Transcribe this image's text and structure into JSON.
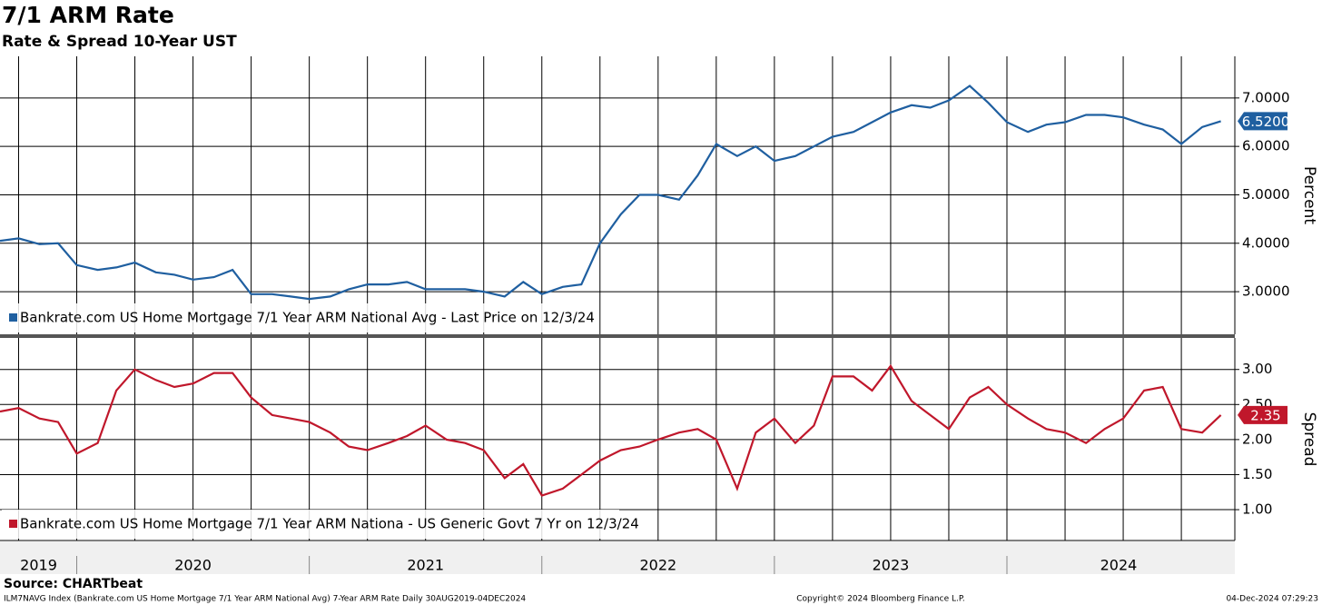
{
  "title": "7/1 ARM Rate",
  "subtitle": "Rate & Spread 10-Year UST",
  "source": "Source: CHARTbeat",
  "footer_left": "ILM7NAVG Index (Bankrate.com US Home Mortgage 7/1 Year ARM National Avg) 7-Year ARM Rate  Daily 30AUG2019-04DEC2024",
  "footer_center": "Copyright© 2024 Bloomberg Finance L.P.",
  "footer_right": "04-Dec-2024 07:29:23",
  "x_axis": {
    "xlim": [
      2019.67,
      2024.98
    ],
    "xticks": [
      {
        "value": 2019.836,
        "label": "2019"
      },
      {
        "value": 2020.5,
        "label": "2020"
      },
      {
        "value": 2021.5,
        "label": "2021"
      },
      {
        "value": 2022.5,
        "label": "2022"
      },
      {
        "value": 2023.5,
        "label": "2023"
      },
      {
        "value": 2024.48,
        "label": "2024"
      }
    ],
    "separators": [
      2020,
      2021,
      2022,
      2023,
      2024
    ],
    "xgrid": [
      2019.75,
      2020,
      2020.25,
      2020.5,
      2020.75,
      2021,
      2021.25,
      2021.5,
      2021.75,
      2022,
      2022.25,
      2022.5,
      2022.75,
      2023,
      2023.25,
      2023.5,
      2023.75,
      2024,
      2024.25,
      2024.5,
      2024.75
    ]
  },
  "chart_data": [
    {
      "type": "line",
      "y_label": "Percent",
      "ylim": [
        2.12,
        7.86
      ],
      "yticks": [
        {
          "value": 3,
          "label": "3.0000"
        },
        {
          "value": 4,
          "label": "4.0000"
        },
        {
          "value": 5,
          "label": "5.0000"
        },
        {
          "value": 6,
          "label": "6.0000"
        },
        {
          "value": 7,
          "label": "7.0000"
        }
      ],
      "last_label": "6.5200",
      "x": [
        2019.67,
        2019.75,
        2019.84,
        2019.92,
        2020.0,
        2020.09,
        2020.17,
        2020.25,
        2020.34,
        2020.42,
        2020.5,
        2020.59,
        2020.67,
        2020.75,
        2020.84,
        2020.92,
        2021.0,
        2021.09,
        2021.17,
        2021.25,
        2021.34,
        2021.42,
        2021.5,
        2021.59,
        2021.67,
        2021.75,
        2021.84,
        2021.92,
        2022.0,
        2022.09,
        2022.17,
        2022.25,
        2022.34,
        2022.42,
        2022.5,
        2022.59,
        2022.67,
        2022.75,
        2022.84,
        2022.92,
        2023.0,
        2023.09,
        2023.17,
        2023.25,
        2023.34,
        2023.42,
        2023.5,
        2023.59,
        2023.67,
        2023.75,
        2023.84,
        2023.92,
        2024.0,
        2024.09,
        2024.17,
        2024.25,
        2024.34,
        2024.42,
        2024.5,
        2024.59,
        2024.67,
        2024.75,
        2024.84,
        2024.92
      ],
      "series": [
        {
          "name": "Bankrate.com US Home Mortgage 7/1 Year ARM National Avg - Last Price on 12/3/24",
          "color": "#1f5fa0",
          "values": [
            4.05,
            4.1,
            3.98,
            4.0,
            3.55,
            3.45,
            3.5,
            3.6,
            3.4,
            3.35,
            3.25,
            3.3,
            3.45,
            2.95,
            2.95,
            2.9,
            2.85,
            2.9,
            3.05,
            3.15,
            3.15,
            3.2,
            3.05,
            3.05,
            3.05,
            3.0,
            2.9,
            3.2,
            2.95,
            3.1,
            3.15,
            4.0,
            4.6,
            5.0,
            5.0,
            4.9,
            5.4,
            6.05,
            5.8,
            6.0,
            5.7,
            5.8,
            6.0,
            6.2,
            6.3,
            6.5,
            6.7,
            6.85,
            6.8,
            6.95,
            7.25,
            6.9,
            6.5,
            6.3,
            6.45,
            6.5,
            6.65,
            6.65,
            6.6,
            6.45,
            6.35,
            6.05,
            6.4,
            6.52
          ]
        }
      ]
    },
    {
      "type": "line",
      "y_label": "Spread",
      "ylim": [
        0.56,
        3.45
      ],
      "yticks": [
        {
          "value": 1,
          "label": "1.00"
        },
        {
          "value": 1.5,
          "label": "1.50"
        },
        {
          "value": 2,
          "label": "2.00"
        },
        {
          "value": 2.5,
          "label": "2.50"
        },
        {
          "value": 3,
          "label": "3.00"
        }
      ],
      "last_label": "2.35",
      "x": [
        2019.67,
        2019.75,
        2019.84,
        2019.92,
        2020.0,
        2020.09,
        2020.17,
        2020.25,
        2020.34,
        2020.42,
        2020.5,
        2020.59,
        2020.67,
        2020.75,
        2020.84,
        2020.92,
        2021.0,
        2021.09,
        2021.17,
        2021.25,
        2021.34,
        2021.42,
        2021.5,
        2021.59,
        2021.67,
        2021.75,
        2021.84,
        2021.92,
        2022.0,
        2022.09,
        2022.17,
        2022.25,
        2022.34,
        2022.42,
        2022.5,
        2022.59,
        2022.67,
        2022.75,
        2022.84,
        2022.92,
        2023.0,
        2023.09,
        2023.17,
        2023.25,
        2023.34,
        2023.42,
        2023.5,
        2023.59,
        2023.67,
        2023.75,
        2023.84,
        2023.92,
        2024.0,
        2024.09,
        2024.17,
        2024.25,
        2024.34,
        2024.42,
        2024.5,
        2024.59,
        2024.67,
        2024.75,
        2024.84,
        2024.92
      ],
      "series": [
        {
          "name": "Bankrate.com US Home Mortgage 7/1 Year ARM Nationa - US Generic Govt 7 Yr on 12/3/24",
          "color": "#c0172b",
          "values": [
            2.4,
            2.45,
            2.3,
            2.25,
            1.8,
            1.95,
            2.7,
            3.0,
            2.85,
            2.75,
            2.8,
            2.95,
            2.95,
            2.6,
            2.35,
            2.3,
            2.25,
            2.1,
            1.9,
            1.85,
            1.95,
            2.05,
            2.2,
            2.0,
            1.95,
            1.85,
            1.45,
            1.65,
            1.2,
            1.3,
            1.5,
            1.7,
            1.85,
            1.9,
            2.0,
            2.1,
            2.15,
            2.0,
            1.3,
            2.1,
            2.3,
            1.95,
            2.2,
            2.9,
            2.9,
            2.7,
            3.05,
            2.55,
            2.35,
            2.15,
            2.6,
            2.75,
            2.5,
            2.3,
            2.15,
            2.1,
            1.95,
            2.15,
            2.3,
            2.7,
            2.75,
            2.15,
            2.1,
            2.35
          ]
        }
      ]
    }
  ]
}
